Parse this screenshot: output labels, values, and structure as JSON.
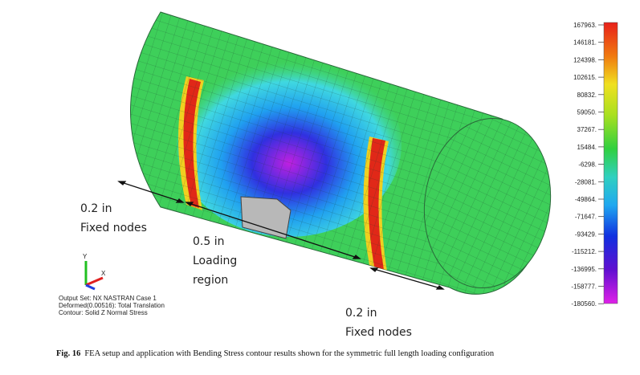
{
  "figure": {
    "annotations": [
      {
        "lines": [
          "0.2 in",
          "Fixed nodes"
        ]
      },
      {
        "lines": [
          "0.5 in",
          "Loading",
          "region"
        ]
      },
      {
        "lines": [
          "0.2 in",
          "Fixed nodes"
        ]
      }
    ],
    "triad": {
      "y": "Y",
      "x": "X"
    },
    "output_info": [
      "Output Set: NX NASTRAN Case 1",
      "Deformed(0.00516): Total Translation",
      "Contour: Solid Z Normal Stress"
    ],
    "colorbar": {
      "labels": [
        "167963.",
        "146181.",
        "124398.",
        "102615.",
        "80832.",
        "59050.",
        "37267.",
        "15484.",
        "-6298.",
        "-28081.",
        "-49864.",
        "-71647.",
        "-93429.",
        "-115212.",
        "-136995.",
        "-158777.",
        "-180560."
      ]
    }
  },
  "caption": {
    "label": "Fig. 16",
    "text": "FEA setup and application with Bending Stress contour results shown for the symmetric full length loading configuration"
  }
}
